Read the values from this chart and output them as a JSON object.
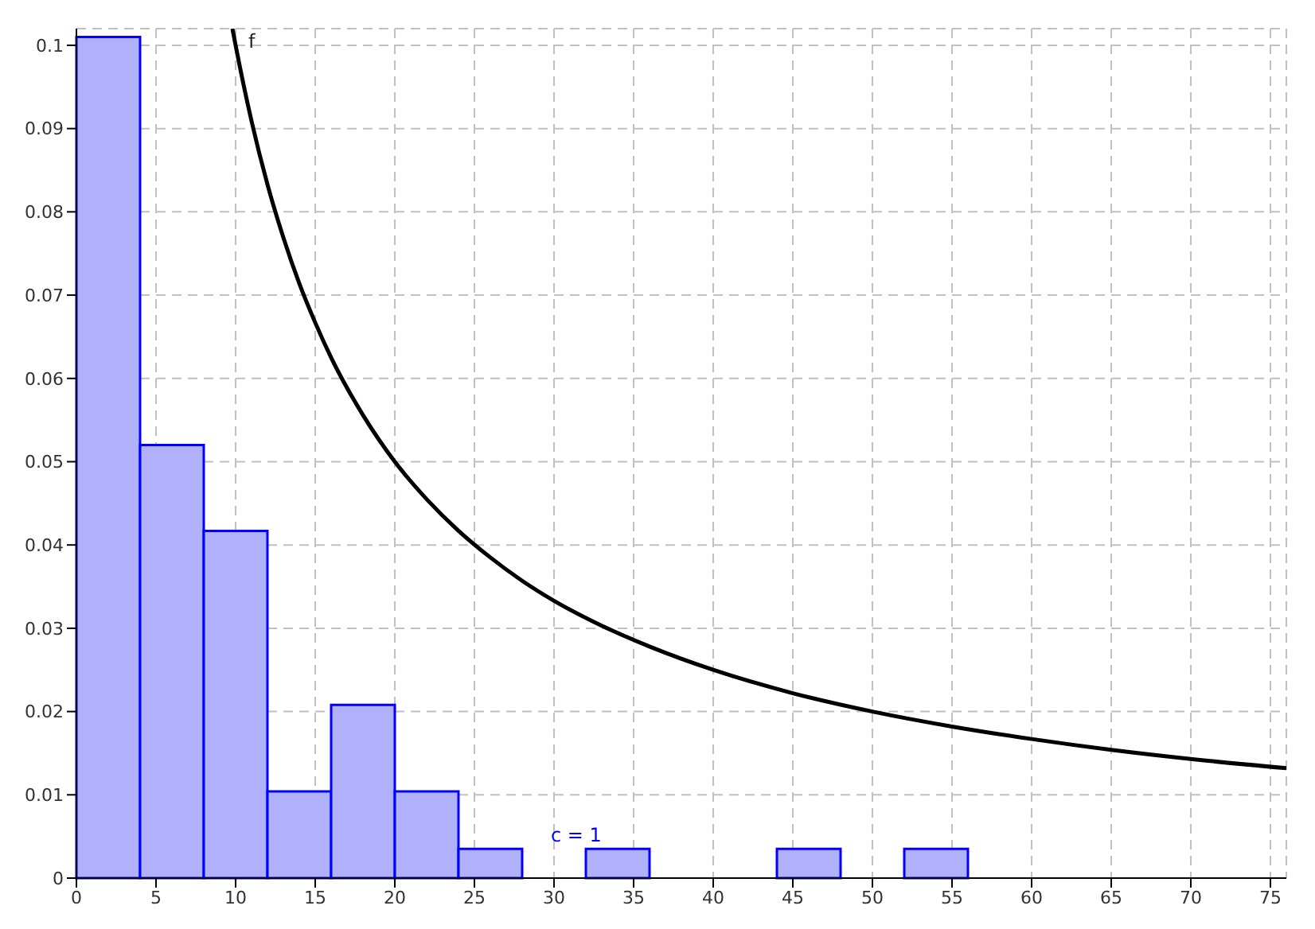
{
  "chart_data": {
    "type": "histogram",
    "xlim": [
      0,
      76
    ],
    "ylim": [
      0,
      0.102
    ],
    "xticks": [
      0,
      5,
      10,
      15,
      20,
      25,
      30,
      35,
      40,
      45,
      50,
      55,
      60,
      65,
      70,
      75
    ],
    "yticks": [
      0,
      0.01,
      0.02,
      0.03,
      0.04,
      0.05,
      0.06,
      0.07,
      0.08,
      0.09,
      0.1
    ],
    "grid": true,
    "annotations": [
      "c = 1"
    ],
    "series": [
      {
        "color": "#b1b1fb",
        "bins": [
          0,
          4,
          8,
          12,
          16,
          20,
          24,
          28,
          32,
          36,
          40,
          44,
          48,
          52,
          56
        ],
        "values": [
          0.101,
          0.052,
          0.0417,
          0.0104,
          0.0208,
          0.0104,
          0.0035,
          0,
          0.0035,
          0,
          0,
          0.0035,
          0,
          0.0035
        ]
      },
      {
        "type": "line",
        "name": "f",
        "color": "#000000",
        "x": [
          9.8,
          10,
          11,
          12,
          13,
          14,
          15,
          16,
          18,
          20,
          22,
          24,
          26,
          28,
          30,
          33,
          36,
          40,
          45,
          50,
          55,
          60,
          65,
          70,
          76
        ],
        "values": [
          0.102,
          0.1,
          0.0909,
          0.0833,
          0.0769,
          0.0714,
          0.0667,
          0.0625,
          0.0556,
          0.05,
          0.0455,
          0.0417,
          0.0385,
          0.0357,
          0.0333,
          0.0303,
          0.0278,
          0.025,
          0.0222,
          0.02,
          0.0182,
          0.0167,
          0.0154,
          0.0143,
          0.0132
        ]
      }
    ]
  }
}
